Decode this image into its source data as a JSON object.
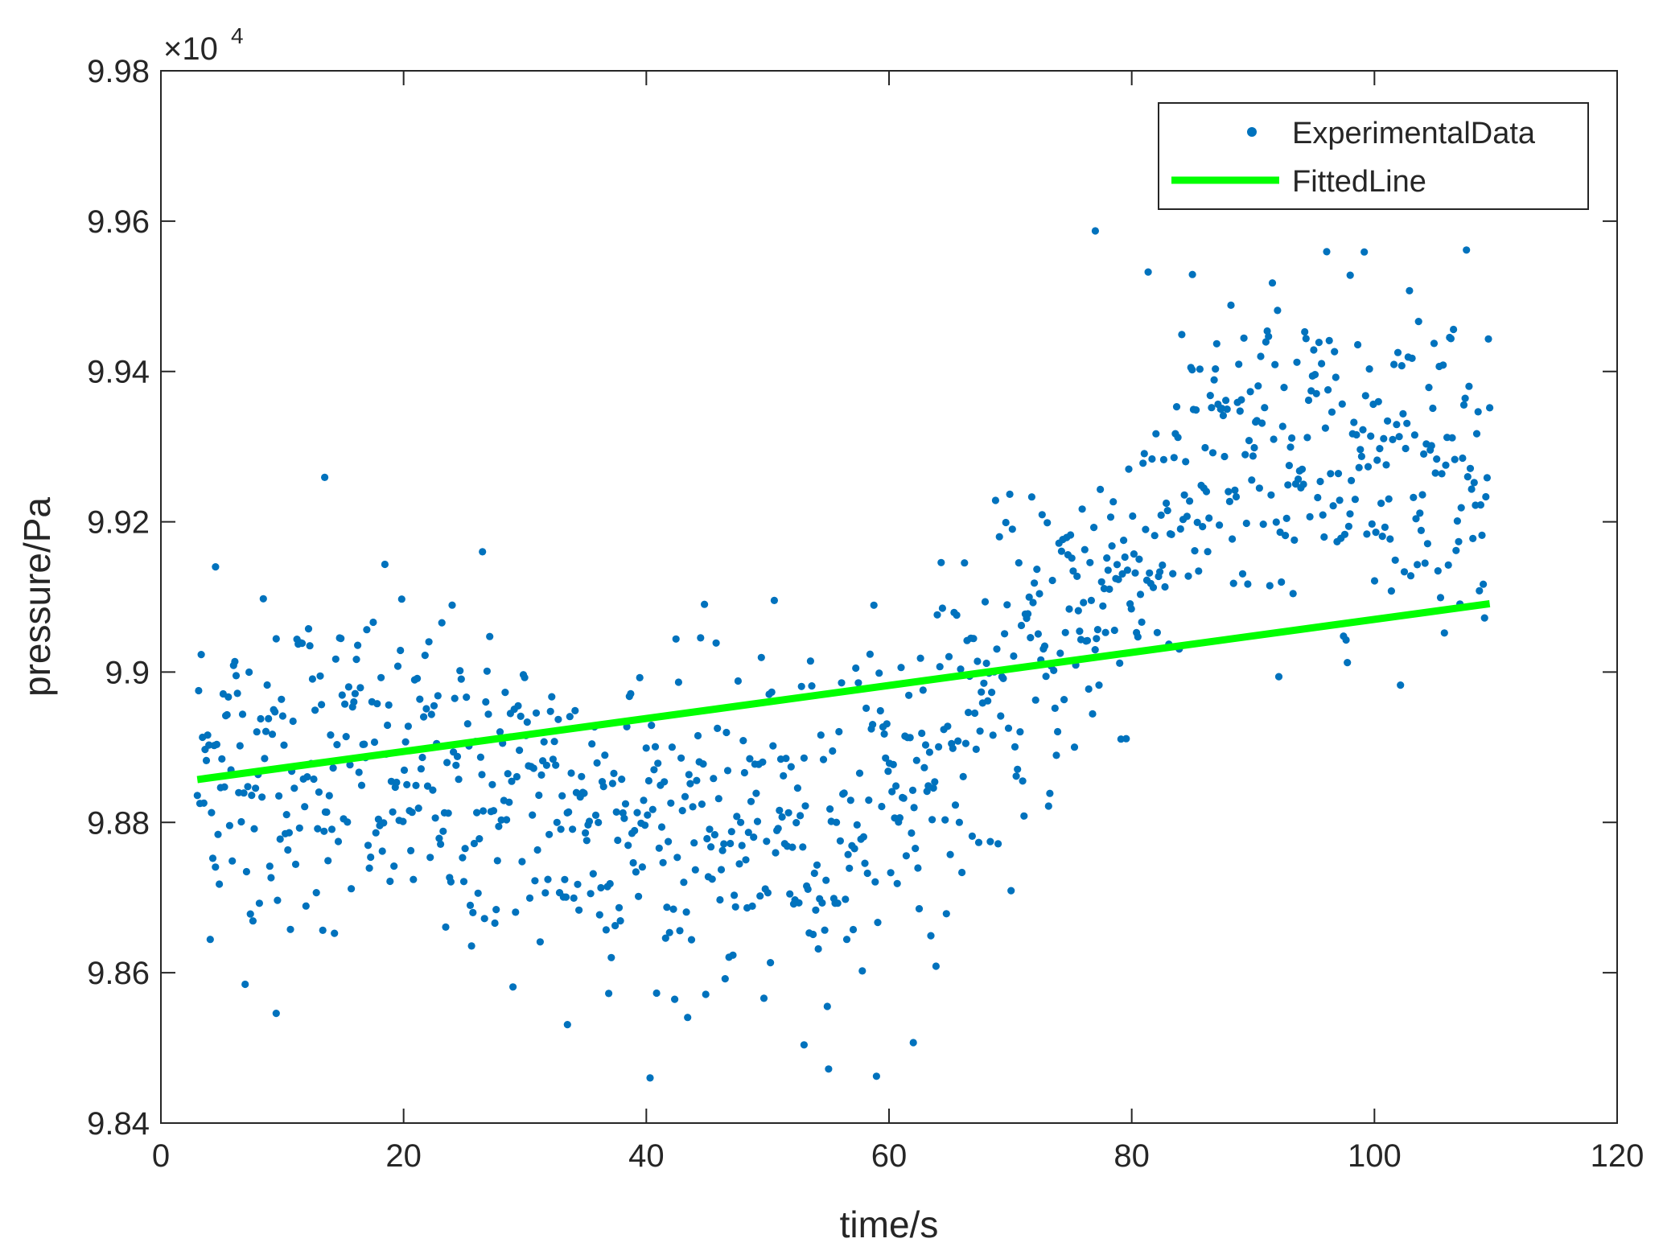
{
  "chart_data": {
    "type": "scatter",
    "title": "",
    "xlabel": "time/s",
    "ylabel": "pressure/Pa",
    "xlim": [
      0,
      120
    ],
    "ylim": [
      98400,
      99800
    ],
    "xticks": [
      0,
      20,
      40,
      60,
      80,
      100,
      120
    ],
    "xtick_labels": [
      "0",
      "20",
      "40",
      "60",
      "80",
      "100",
      "120"
    ],
    "yticks": [
      98400,
      98600,
      98800,
      99000,
      99200,
      99400,
      99600,
      99800
    ],
    "ytick_labels": [
      "9.84",
      "9.86",
      "9.88",
      "9.9",
      "9.92",
      "9.94",
      "9.96",
      "9.98"
    ],
    "y_exponent_base": "×10",
    "y_exponent_power": "4",
    "grid": false,
    "box": true,
    "legend_location": "top-right",
    "colors": {
      "experimental": "#0072BD",
      "fitted": "#00FF00",
      "axes": "#262626"
    },
    "series": [
      {
        "name": "ExperimentalData",
        "kind": "markers",
        "point_count": 1000,
        "x_range": [
          3,
          109.5
        ],
        "trend_anchors": [
          {
            "x": 3,
            "y": 98870
          },
          {
            "x": 15,
            "y": 98880
          },
          {
            "x": 30,
            "y": 98830
          },
          {
            "x": 45,
            "y": 98790
          },
          {
            "x": 55,
            "y": 98790
          },
          {
            "x": 62,
            "y": 98870
          },
          {
            "x": 70,
            "y": 98990
          },
          {
            "x": 80,
            "y": 99150
          },
          {
            "x": 88,
            "y": 99280
          },
          {
            "x": 100,
            "y": 99295
          },
          {
            "x": 109.5,
            "y": 99300
          }
        ],
        "scatter_spread": 110,
        "notable_points": [
          {
            "x": 13.5,
            "y": 99259
          },
          {
            "x": 77,
            "y": 99587
          },
          {
            "x": 98,
            "y": 99528
          },
          {
            "x": 85,
            "y": 99529
          },
          {
            "x": 9.5,
            "y": 98546
          },
          {
            "x": 53,
            "y": 98504
          },
          {
            "x": 62,
            "y": 98507
          },
          {
            "x": 33.5,
            "y": 98531
          },
          {
            "x": 4.5,
            "y": 99140
          },
          {
            "x": 26.5,
            "y": 99160
          }
        ]
      },
      {
        "name": "FittedLine",
        "kind": "line",
        "x": [
          3,
          109.5
        ],
        "y": [
          98857,
          99091
        ]
      }
    ]
  }
}
